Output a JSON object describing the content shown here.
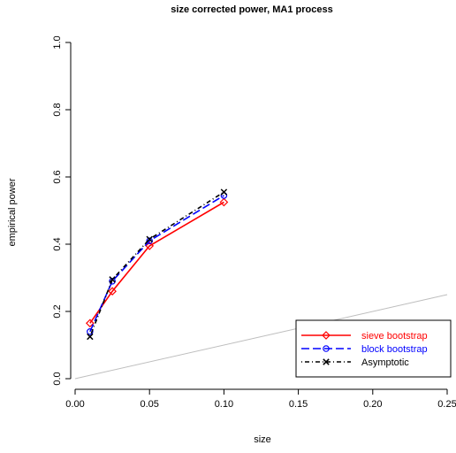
{
  "chart_data": {
    "type": "line",
    "title": "size corrected power, MA1 process",
    "xlabel": "size",
    "ylabel": "empirical power",
    "xlim": [
      0,
      0.25
    ],
    "ylim": [
      0,
      1.0
    ],
    "x_ticks": [
      "0.00",
      "0.05",
      "0.10",
      "0.15",
      "0.20",
      "0.25"
    ],
    "y_ticks": [
      "0.0",
      "0.2",
      "0.4",
      "0.6",
      "0.8",
      "1.0"
    ],
    "x_tick_values": [
      0,
      0.05,
      0.1,
      0.15,
      0.2,
      0.25
    ],
    "y_tick_values": [
      0,
      0.2,
      0.4,
      0.6,
      0.8,
      1.0
    ],
    "grid": false,
    "legend_position": "bottom-right",
    "reference_line": {
      "type": "diagonal",
      "color": "#bebebe"
    },
    "x": [
      0.01,
      0.025,
      0.05,
      0.1
    ],
    "series": [
      {
        "name": "sieve bootstrap",
        "color": "#ff0000",
        "line": "solid",
        "marker": "diamond",
        "values": [
          0.165,
          0.26,
          0.395,
          0.525
        ]
      },
      {
        "name": "block bootstrap",
        "color": "#0000ff",
        "line": "dashed",
        "marker": "circle",
        "values": [
          0.14,
          0.29,
          0.41,
          0.545
        ]
      },
      {
        "name": "Asymptotic",
        "color": "#000000",
        "line": "dotdash",
        "marker": "cross",
        "values": [
          0.125,
          0.295,
          0.415,
          0.555
        ]
      }
    ]
  }
}
